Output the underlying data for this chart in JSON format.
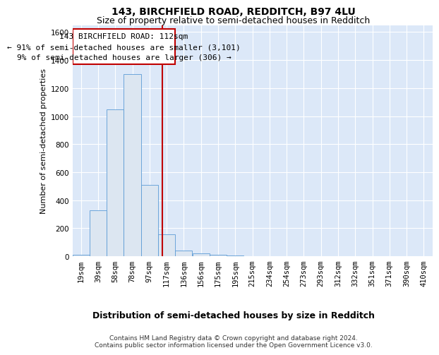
{
  "title1": "143, BIRCHFIELD ROAD, REDDITCH, B97 4LU",
  "title2": "Size of property relative to semi-detached houses in Redditch",
  "xlabel": "Distribution of semi-detached houses by size in Redditch",
  "ylabel": "Number of semi-detached properties",
  "footer1": "Contains HM Land Registry data © Crown copyright and database right 2024.",
  "footer2": "Contains public sector information licensed under the Open Government Licence v3.0.",
  "annotation_line1": "143 BIRCHFIELD ROAD: 112sqm",
  "annotation_line2": "← 91% of semi-detached houses are smaller (3,101)",
  "annotation_line3": "9% of semi-detached houses are larger (306) →",
  "property_size": 112,
  "bar_edge_color": "#5b9bd5",
  "bar_face_color": "#dce6f1",
  "vline_color": "#c00000",
  "box_color": "#c00000",
  "categories": [
    "19sqm",
    "39sqm",
    "58sqm",
    "78sqm",
    "97sqm",
    "117sqm",
    "136sqm",
    "156sqm",
    "175sqm",
    "195sqm",
    "215sqm",
    "234sqm",
    "254sqm",
    "273sqm",
    "293sqm",
    "312sqm",
    "332sqm",
    "351sqm",
    "371sqm",
    "390sqm",
    "410sqm"
  ],
  "bin_edges": [
    9.5,
    29,
    48.5,
    68,
    87.5,
    107,
    126.5,
    146,
    165.5,
    185,
    204.5,
    224,
    243.5,
    263,
    282.5,
    302,
    321.5,
    341,
    360.5,
    380,
    399.5,
    419
  ],
  "values": [
    10,
    330,
    1050,
    1300,
    510,
    155,
    40,
    20,
    10,
    5,
    2,
    1,
    1,
    0,
    0,
    0,
    0,
    0,
    0,
    0,
    0
  ],
  "ylim": [
    0,
    1650
  ],
  "yticks": [
    0,
    200,
    400,
    600,
    800,
    1000,
    1200,
    1400,
    1600
  ],
  "bg_color": "#dce8f8",
  "grid_color": "#ffffff",
  "title1_fontsize": 10,
  "title2_fontsize": 9,
  "xlabel_fontsize": 9,
  "ylabel_fontsize": 8,
  "tick_fontsize": 7.5,
  "annotation_fontsize": 8,
  "footer_fontsize": 6.5
}
